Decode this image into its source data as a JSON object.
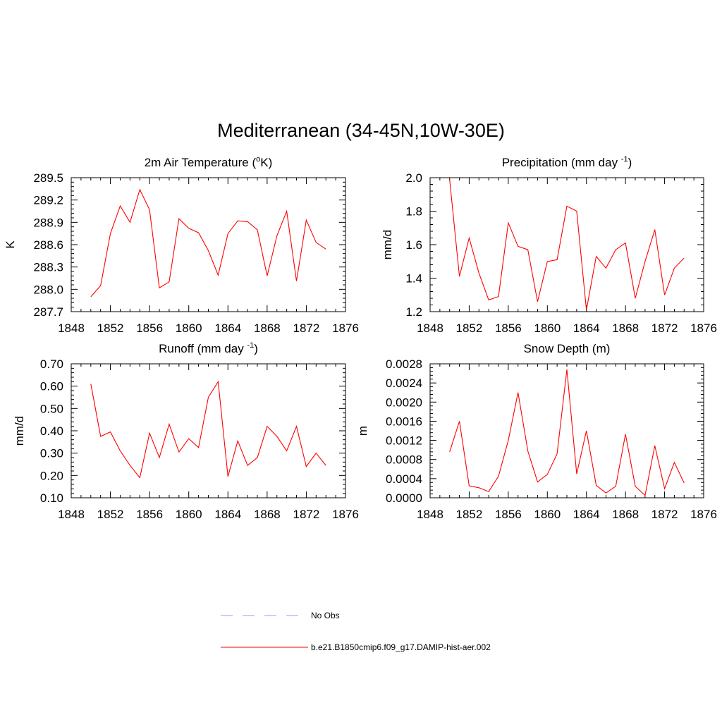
{
  "figure": {
    "title": "Mediterranean (34-45N,10W-30E)"
  },
  "legend": {
    "items": [
      {
        "label": "No Obs",
        "color": "#9999ff",
        "style": "dashed"
      },
      {
        "label": "b.e21.B1850cmip6.f09_g17.DAMIP-hist-aer.002",
        "color": "#ff0000",
        "style": "solid"
      }
    ]
  },
  "chart_data": [
    {
      "type": "line",
      "title": "2m Air Temperature",
      "title_unit_base": "K",
      "title_unit_sup": "o",
      "ylabel": "K",
      "xlim": [
        1848,
        1876
      ],
      "ylim": [
        287.7,
        289.5
      ],
      "xticks": [
        1848,
        1852,
        1856,
        1860,
        1864,
        1868,
        1872,
        1876
      ],
      "yticks": [
        "287.7",
        "288.0",
        "288.3",
        "288.6",
        "288.9",
        "289.2",
        "289.5"
      ],
      "x": [
        1850,
        1851,
        1852,
        1853,
        1854,
        1855,
        1856,
        1857,
        1858,
        1859,
        1860,
        1861,
        1862,
        1863,
        1864,
        1865,
        1866,
        1867,
        1868,
        1869,
        1870,
        1871,
        1872,
        1873,
        1874
      ],
      "series": [
        {
          "name": "b.e21.B1850cmip6.f09_g17.DAMIP-hist-aer.002",
          "color": "#ff0000",
          "values": [
            287.9,
            288.05,
            288.75,
            289.12,
            288.9,
            289.34,
            289.07,
            288.02,
            288.1,
            288.95,
            288.82,
            288.76,
            288.52,
            288.19,
            288.75,
            288.92,
            288.91,
            288.8,
            288.18,
            288.72,
            289.05,
            288.11,
            288.93,
            288.63,
            288.54
          ]
        }
      ]
    },
    {
      "type": "line",
      "title": "Precipitation (mm day",
      "title_sup": "-1",
      "title_close": ")",
      "ylabel": "mm/d",
      "xlim": [
        1848,
        1876
      ],
      "ylim": [
        1.2,
        2.0
      ],
      "xticks": [
        1848,
        1852,
        1856,
        1860,
        1864,
        1868,
        1872,
        1876
      ],
      "yticks": [
        "1.2",
        "1.4",
        "1.6",
        "1.8",
        "2.0"
      ],
      "x": [
        1850,
        1851,
        1852,
        1853,
        1854,
        1855,
        1856,
        1857,
        1858,
        1859,
        1860,
        1861,
        1862,
        1863,
        1864,
        1865,
        1866,
        1867,
        1868,
        1869,
        1870,
        1871,
        1872,
        1873,
        1874
      ],
      "series": [
        {
          "name": "b.e21.B1850cmip6.f09_g17.DAMIP-hist-aer.002",
          "color": "#ff0000",
          "values": [
            1.99,
            1.41,
            1.64,
            1.43,
            1.27,
            1.29,
            1.73,
            1.59,
            1.57,
            1.26,
            1.5,
            1.51,
            1.83,
            1.8,
            1.21,
            1.53,
            1.46,
            1.57,
            1.61,
            1.28,
            1.5,
            1.69,
            1.3,
            1.46,
            1.52
          ]
        }
      ]
    },
    {
      "type": "line",
      "title": "Runoff (mm day",
      "title_sup": "-1",
      "title_close": ")",
      "ylabel": "mm/d",
      "xlim": [
        1848,
        1876
      ],
      "ylim": [
        0.1,
        0.7
      ],
      "xticks": [
        1848,
        1852,
        1856,
        1860,
        1864,
        1868,
        1872,
        1876
      ],
      "yticks": [
        "0.10",
        "0.20",
        "0.30",
        "0.40",
        "0.50",
        "0.60",
        "0.70"
      ],
      "x": [
        1850,
        1851,
        1852,
        1853,
        1854,
        1855,
        1856,
        1857,
        1858,
        1859,
        1860,
        1861,
        1862,
        1863,
        1864,
        1865,
        1866,
        1867,
        1868,
        1869,
        1870,
        1871,
        1872,
        1873,
        1874
      ],
      "series": [
        {
          "name": "b.e21.B1850cmip6.f09_g17.DAMIP-hist-aer.002",
          "color": "#ff0000",
          "values": [
            0.61,
            0.375,
            0.395,
            0.31,
            0.245,
            0.19,
            0.39,
            0.28,
            0.43,
            0.305,
            0.365,
            0.325,
            0.55,
            0.62,
            0.195,
            0.355,
            0.245,
            0.28,
            0.42,
            0.375,
            0.31,
            0.42,
            0.24,
            0.3,
            0.245
          ]
        }
      ]
    },
    {
      "type": "line",
      "title": "Snow Depth (m)",
      "ylabel": "m",
      "xlim": [
        1848,
        1876
      ],
      "ylim": [
        0.0,
        0.0028
      ],
      "xticks": [
        1848,
        1852,
        1856,
        1860,
        1864,
        1868,
        1872,
        1876
      ],
      "yticks": [
        "0.0000",
        "0.0004",
        "0.0008",
        "0.0012",
        "0.0016",
        "0.0020",
        "0.0024",
        "0.0028"
      ],
      "x": [
        1850,
        1851,
        1852,
        1853,
        1854,
        1855,
        1856,
        1857,
        1858,
        1859,
        1860,
        1861,
        1862,
        1863,
        1864,
        1865,
        1866,
        1867,
        1868,
        1869,
        1870,
        1871,
        1872,
        1873,
        1874
      ],
      "series": [
        {
          "name": "b.e21.B1850cmip6.f09_g17.DAMIP-hist-aer.002",
          "color": "#ff0000",
          "values": [
            0.00096,
            0.0016,
            0.00025,
            0.00021,
            0.00013,
            0.00045,
            0.0012,
            0.0022,
            0.00098,
            0.00033,
            0.00049,
            0.00092,
            0.00268,
            0.0005,
            0.0014,
            0.00026,
            0.0001,
            0.00024,
            0.00133,
            0.00024,
            5e-05,
            0.00109,
            0.00019,
            0.00074,
            0.00031
          ]
        }
      ]
    }
  ]
}
